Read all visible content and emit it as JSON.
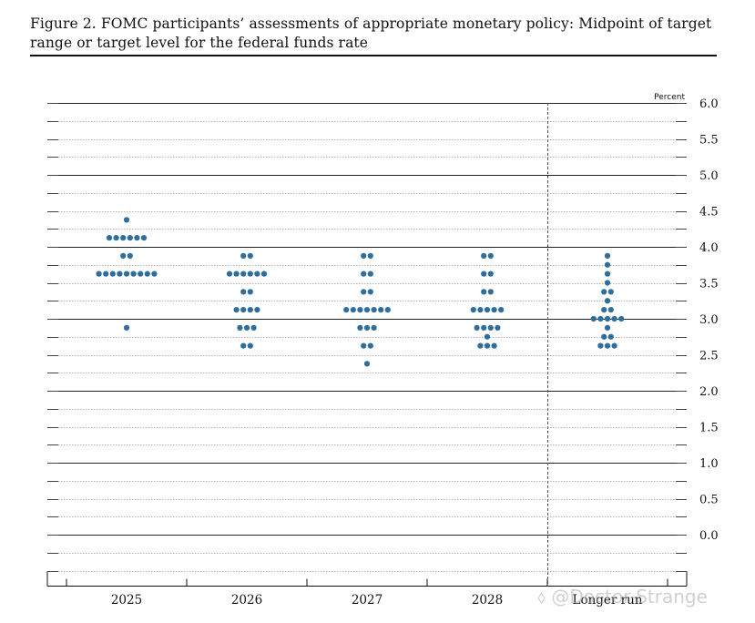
{
  "title": "Figure 2. FOMC participants’ assessments of appropriate monetary policy: Midpoint of target range or target level for the federal funds rate",
  "watermark": "⬨ @Doctor-Strange",
  "chart_data": {
    "type": "scatter",
    "subtype": "dot-plot",
    "title": "Figure 2. FOMC participants’ assessments of appropriate monetary policy: Midpoint of target range or target level for the federal funds rate",
    "ylabel": "Percent",
    "xlabel": "",
    "ylim": [
      -0.5,
      6.0
    ],
    "y_ticks": [
      "6.0",
      "5.5",
      "5.0",
      "4.5",
      "4.0",
      "3.5",
      "3.0",
      "2.5",
      "2.0",
      "1.5",
      "1.0",
      "0.5",
      "0.0"
    ],
    "categories": [
      "2025",
      "2026",
      "2027",
      "2028",
      "Longer run"
    ],
    "grid": true,
    "dot_color": "#2e6e9e",
    "columns": [
      {
        "category": "2025",
        "dots": [
          {
            "y": 4.375,
            "count": 1
          },
          {
            "y": 4.125,
            "count": 6
          },
          {
            "y": 3.875,
            "count": 2
          },
          {
            "y": 3.625,
            "count": 9
          },
          {
            "y": 2.875,
            "count": 1
          }
        ]
      },
      {
        "category": "2026",
        "dots": [
          {
            "y": 3.875,
            "count": 2
          },
          {
            "y": 3.625,
            "count": 6
          },
          {
            "y": 3.375,
            "count": 2
          },
          {
            "y": 3.125,
            "count": 4
          },
          {
            "y": 2.875,
            "count": 3
          },
          {
            "y": 2.625,
            "count": 2
          }
        ]
      },
      {
        "category": "2027",
        "dots": [
          {
            "y": 3.875,
            "count": 2
          },
          {
            "y": 3.625,
            "count": 2
          },
          {
            "y": 3.375,
            "count": 2
          },
          {
            "y": 3.125,
            "count": 7
          },
          {
            "y": 2.875,
            "count": 3
          },
          {
            "y": 2.625,
            "count": 2
          },
          {
            "y": 2.375,
            "count": 1
          }
        ]
      },
      {
        "category": "2028",
        "dots": [
          {
            "y": 3.875,
            "count": 2
          },
          {
            "y": 3.625,
            "count": 2
          },
          {
            "y": 3.375,
            "count": 2
          },
          {
            "y": 3.125,
            "count": 5
          },
          {
            "y": 2.875,
            "count": 4
          },
          {
            "y": 2.75,
            "count": 1
          },
          {
            "y": 2.625,
            "count": 3
          }
        ]
      },
      {
        "category": "Longer run",
        "dots": [
          {
            "y": 3.875,
            "count": 1
          },
          {
            "y": 3.75,
            "count": 1
          },
          {
            "y": 3.625,
            "count": 1
          },
          {
            "y": 3.5,
            "count": 1
          },
          {
            "y": 3.375,
            "count": 2
          },
          {
            "y": 3.25,
            "count": 1
          },
          {
            "y": 3.125,
            "count": 2
          },
          {
            "y": 3.0,
            "count": 5
          },
          {
            "y": 2.875,
            "count": 1
          },
          {
            "y": 2.75,
            "count": 2
          },
          {
            "y": 2.625,
            "count": 3
          }
        ]
      }
    ]
  }
}
